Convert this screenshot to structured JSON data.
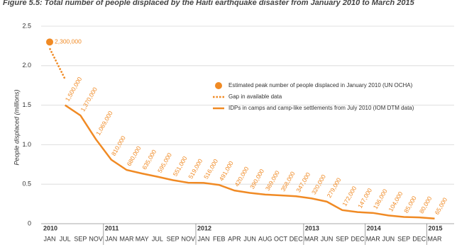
{
  "chart_data": {
    "type": "line",
    "title": "Figure 5.5: Total number of people displaced by the Haiti earthquake disaster from January 2010 to March 2015",
    "y_label": "People displaced (millions)",
    "categories": [
      "JAN",
      "JUL",
      "SEP",
      "NOV",
      "JAN",
      "MAR",
      "MAY",
      "JUL",
      "SEP",
      "NOV",
      "JAN",
      "FEB",
      "APR",
      "JUN",
      "AUG",
      "OCT",
      "DEC",
      "MAR",
      "JUN",
      "SEP",
      "DEC",
      "MAR",
      "JUN",
      "SEP",
      "DEC",
      "MAR"
    ],
    "year_labels": [
      "2010",
      null,
      null,
      null,
      "2011",
      null,
      null,
      null,
      null,
      null,
      "2012",
      null,
      null,
      null,
      null,
      null,
      null,
      "2013",
      null,
      null,
      null,
      "2014",
      null,
      null,
      null,
      "2015"
    ],
    "ylim": [
      0,
      2.5
    ],
    "yticks": [
      0,
      0.5,
      {
        "value": 1,
        "label": "1.0"
      },
      1.5,
      {
        "value": 2,
        "label": "2.0"
      },
      2.5
    ],
    "grid": true,
    "series": [
      {
        "name": "Estimated peak number of people displaced in January 2010 (UN OCHA)",
        "color": "#f08a24",
        "style": "dot",
        "values": [
          2.3,
          null,
          null,
          null,
          null,
          null,
          null,
          null,
          null,
          null,
          null,
          null,
          null,
          null,
          null,
          null,
          null,
          null,
          null,
          null,
          null,
          null,
          null,
          null,
          null,
          null
        ],
        "value_labels": [
          "2,300,000",
          null,
          null,
          null,
          null,
          null,
          null,
          null,
          null,
          null,
          null,
          null,
          null,
          null,
          null,
          null,
          null,
          null,
          null,
          null,
          null,
          null,
          null,
          null,
          null,
          null
        ]
      },
      {
        "name": "Gap in available data",
        "color": "#f08a24",
        "style": "dotted",
        "values": [
          2.22,
          1.83,
          null,
          null,
          null,
          null,
          null,
          null,
          null,
          null,
          null,
          null,
          null,
          null,
          null,
          null,
          null,
          null,
          null,
          null,
          null,
          null,
          null,
          null,
          null,
          null
        ]
      },
      {
        "name": "IDPs in camps and camp-like settlements from July 2010 (IOM DTM data)",
        "color": "#f08a24",
        "style": "solid",
        "values": [
          null,
          1.5,
          1.37,
          1.069,
          0.81,
          0.68,
          0.635,
          0.595,
          0.551,
          0.519,
          0.516,
          0.491,
          0.42,
          0.39,
          0.369,
          0.358,
          0.347,
          0.32,
          0.279,
          0.172,
          0.147,
          0.136,
          0.104,
          0.085,
          0.08,
          0.065
        ],
        "value_labels": [
          null,
          "1,500,000",
          "1,370,000",
          "1,069,000",
          "810,000",
          "680,000",
          "635,000",
          "595,000",
          "551,000",
          "519,000",
          "516,000",
          "491,000",
          "420,000",
          "390,000",
          "369,000",
          "358,000",
          "347,000",
          "320,000",
          "279,000",
          "172,000",
          "147,000",
          "136,000",
          "104,000",
          "85,000",
          "80,000",
          "65,000"
        ]
      }
    ]
  }
}
